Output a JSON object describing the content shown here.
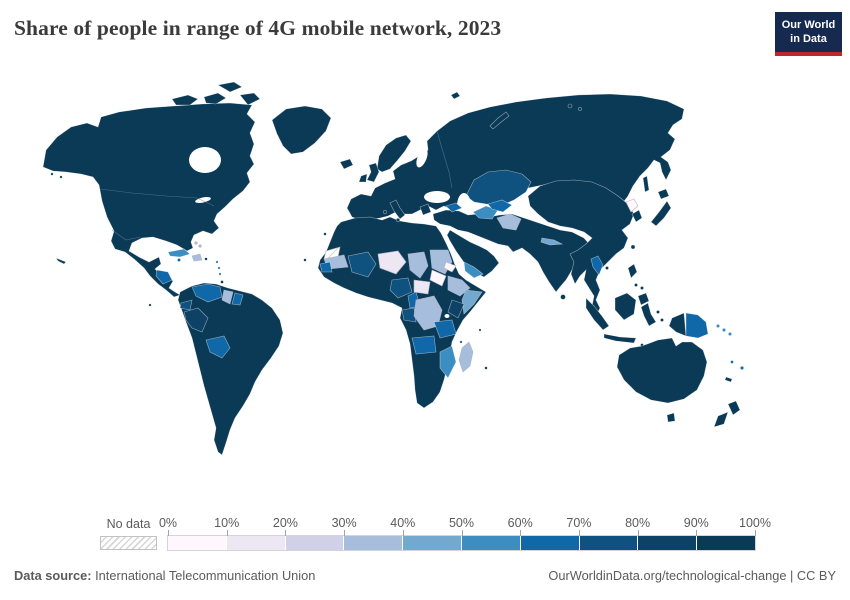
{
  "header": {
    "title": "Share of people in range of 4G mobile network, 2023",
    "logo": {
      "line1": "Our World",
      "line2": "in Data",
      "bg_color": "#16294e",
      "accent_color": "#c0272d"
    }
  },
  "legend": {
    "no_data_label": "No data",
    "tick_labels": [
      "0%",
      "10%",
      "20%",
      "30%",
      "40%",
      "50%",
      "60%",
      "70%",
      "80%",
      "90%",
      "100%"
    ],
    "bin_colors": [
      "#fff7fb",
      "#ece7f2",
      "#d0d1e6",
      "#a6bddb",
      "#74a9cf",
      "#3d8ec0",
      "#1068a9",
      "#10527f",
      "#0e4166",
      "#0b3a57"
    ]
  },
  "map": {
    "ocean_color": "#ffffff",
    "no_data_pattern_color": "#c9c9c9",
    "regions": {
      "north-america": 9,
      "aleutians": 9,
      "arctic-islands": 9,
      "greenland": 9,
      "cuba": 5,
      "hispaniola": 3,
      "jamaica": 6,
      "bahamas": 3,
      "puerto-rico": 9,
      "lesser-antilles": 6,
      "trinidad": 9,
      "honduras-nicaragua": 6,
      "hawaii": 9,
      "galapagos": 9,
      "south-america": 9,
      "venezuela": 6,
      "guyana": 3,
      "suriname": 6,
      "ecuador": 7,
      "peru": 8,
      "bolivia": 6,
      "eurasia": 9,
      "scandinavia": 9,
      "uk": 9,
      "ireland": 9,
      "iceland": 9,
      "italy": 9,
      "greece": 9,
      "sardinia": 9,
      "sicily": 9,
      "svalbard": 9,
      "novaya-zemlya": 9,
      "severnaya-zemlya": 9,
      "kazakhstan": 7,
      "caucasus": 6,
      "turkmenistan": 5,
      "uzbekistan": 6,
      "afghanistan": 3,
      "nepal": 4,
      "middle-east-south-asia": 9,
      "arabian-peninsula": 9,
      "yemen": 5,
      "sri-lanka": 9,
      "east-asia": 9,
      "laos": 6,
      "north-korea": 0,
      "south-korea": 9,
      "japan": 9,
      "sakhalin": 9,
      "taiwan": 9,
      "hainan": 9,
      "philippines": 9,
      "sumatra": 9,
      "borneo": 9,
      "java": 9,
      "sulawesi": 9,
      "moluccas": 9,
      "lesser-sunda": 9,
      "new-guinea-west": 9,
      "papua-new-guinea": 6,
      "solomon-islands": 5,
      "new-caledonia": 9,
      "vanuatu": 6,
      "fiji": 6,
      "australia": 9,
      "tasmania": 9,
      "new-zealand": 9,
      "africa": 9,
      "western-sahara": -1,
      "mauritania": 3,
      "mali": 7,
      "niger": 1,
      "chad": 3,
      "sudan": 3,
      "eritrea": 0,
      "south-sudan": 0,
      "central-african-republic": 1,
      "ethiopia": 3,
      "somalia": 4,
      "kenya": 8,
      "tanzania": 6,
      "nigeria": 7,
      "cameroon": 6,
      "guinea": 6,
      "congo-gabon": 7,
      "drc": 3,
      "angola": 6,
      "mozambique": 5,
      "madagascar": 3,
      "comoros": 9,
      "mauritius": 9,
      "seychelles": 9,
      "cape-verde": 9,
      "canary-islands": 9
    }
  },
  "footer": {
    "source_label": "Data source:",
    "source_text": "International Telecommunication Union",
    "credit_text": "OurWorldinData.org/technological-change | CC BY"
  },
  "chart_data": {
    "type": "choropleth",
    "title": "Share of people in range of 4G mobile network, 2023",
    "unit": "%",
    "color_scale": {
      "bins": 10,
      "domain": [
        0,
        100
      ],
      "bin_size": 10,
      "no_data_style": "grey diagonal hatch"
    },
    "legend_ticks": [
      "0%",
      "10%",
      "20%",
      "30%",
      "40%",
      "50%",
      "60%",
      "70%",
      "80%",
      "90%",
      "100%"
    ],
    "regions_by_range": {
      "90-100%": [
        "Canada",
        "United States",
        "Mexico",
        "Brazil",
        "Argentina",
        "Chile",
        "Colombia",
        "Greenland",
        "Europe",
        "Russia",
        "China",
        "Mongolia",
        "India",
        "Pakistan",
        "Iran",
        "Turkey",
        "Saudi Arabia",
        "Egypt",
        "Morocco",
        "Algeria",
        "Libya",
        "South Africa",
        "Namibia",
        "Botswana",
        "Zimbabwe",
        "Zambia",
        "Japan",
        "South Korea",
        "Indonesia",
        "Philippines",
        "Malaysia",
        "Vietnam",
        "Thailand",
        "Myanmar",
        "Australia",
        "New Zealand"
      ],
      "80-90%": [
        "Peru",
        "Kenya"
      ],
      "70-80%": [
        "Ecuador",
        "Mali",
        "Nigeria",
        "Congo/Gabon",
        "Kazakhstan"
      ],
      "60-70%": [
        "Venezuela",
        "Suriname",
        "Bolivia",
        "Honduras/Nicaragua",
        "Jamaica",
        "Guinea",
        "Cameroon",
        "Tanzania",
        "Angola",
        "Caucasus",
        "Uzbekistan",
        "Laos",
        "Papua New Guinea",
        "Vanuatu",
        "Fiji"
      ],
      "50-60%": [
        "Cuba",
        "Turkmenistan",
        "Yemen",
        "Mozambique",
        "Solomon Islands"
      ],
      "40-50%": [
        "Somalia",
        "Nepal"
      ],
      "30-40%": [
        "Haiti/Dominican Republic",
        "Bahamas",
        "Guyana",
        "Mauritania",
        "Chad",
        "Sudan",
        "Ethiopia",
        "DR Congo",
        "Madagascar",
        "Afghanistan"
      ],
      "10-20%": [
        "Niger",
        "Central African Republic"
      ],
      "0-10%": [
        "South Sudan",
        "Eritrea",
        "North Korea"
      ],
      "No data": [
        "Western Sahara"
      ]
    }
  }
}
